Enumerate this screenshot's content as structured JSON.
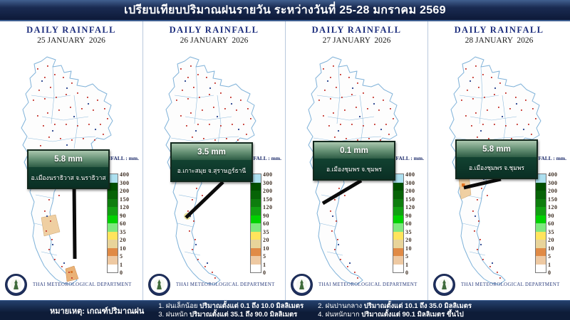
{
  "title": "เปรียบเทียบปริมาณฝนรายวัน ระหว่างวันที่ 25-28 มกราคม 2569",
  "panels": [
    {
      "header": "DAILY RAINFALL",
      "date": "25 JANUARY  2026",
      "value": "5.8 mm",
      "location": "อ.เมืองนราธิวาส จ.นราธิวาส"
    },
    {
      "header": "DAILY RAINFALL",
      "date": "26 JANUARY  2026",
      "value": "3.5 mm",
      "location": "อ.เกาะสมุย จ.สุราษฎร์ธานี"
    },
    {
      "header": "DAILY RAINFALL",
      "date": "27 JANUARY  2026",
      "value": "0.1 mm",
      "location": "อ.เมืองชุมพร จ.ชุมพร"
    },
    {
      "header": "DAILY RAINFALL",
      "date": "28 JANUARY  2026",
      "value": "5.8 mm",
      "location": "อ.เมืองชุมพร จ.ชุมพร"
    }
  ],
  "legend": {
    "header": "RAINFALL : mm.",
    "ticks": [
      "400",
      "300",
      "200",
      "150",
      "120",
      "90",
      "60",
      "35",
      "20",
      "10",
      "5",
      "1",
      "0"
    ],
    "colors": [
      "#ade0f0",
      "#004f00",
      "#076307",
      "#0e7d0e",
      "#12a012",
      "#00d200",
      "#7ee87e",
      "#ffe45c",
      "#e8d49a",
      "#e08a46",
      "#eec9a2",
      "#ffffff"
    ]
  },
  "footer": {
    "label": "THAI METEOROLOGICAL DEPARTMENT"
  },
  "notes": {
    "label": "หมายเหตุ: เกณฑ์ปริมาณฝน",
    "items": [
      {
        "name": "1. ฝนเล็กน้อย ",
        "range": "ปริมาณตั้งแต่ 0.1 ถึง 10.0 มิลลิเมตร"
      },
      {
        "name": "2. ฝนปานกลาง ",
        "range": "ปริมาณตั้งแต่ 10.1 ถึง 35.0 มิลลิเมตร"
      },
      {
        "name": "3. ฝนหนัก ",
        "range": "ปริมาณตั้งแต่ 35.1 ถึง 90.0 มิลลิเมตร"
      },
      {
        "name": "4. ฝนหนักมาก ",
        "range": "ปริมาณตั้งแต่ 90.1 มิลลิเมตร ขึ้นไป"
      }
    ]
  }
}
